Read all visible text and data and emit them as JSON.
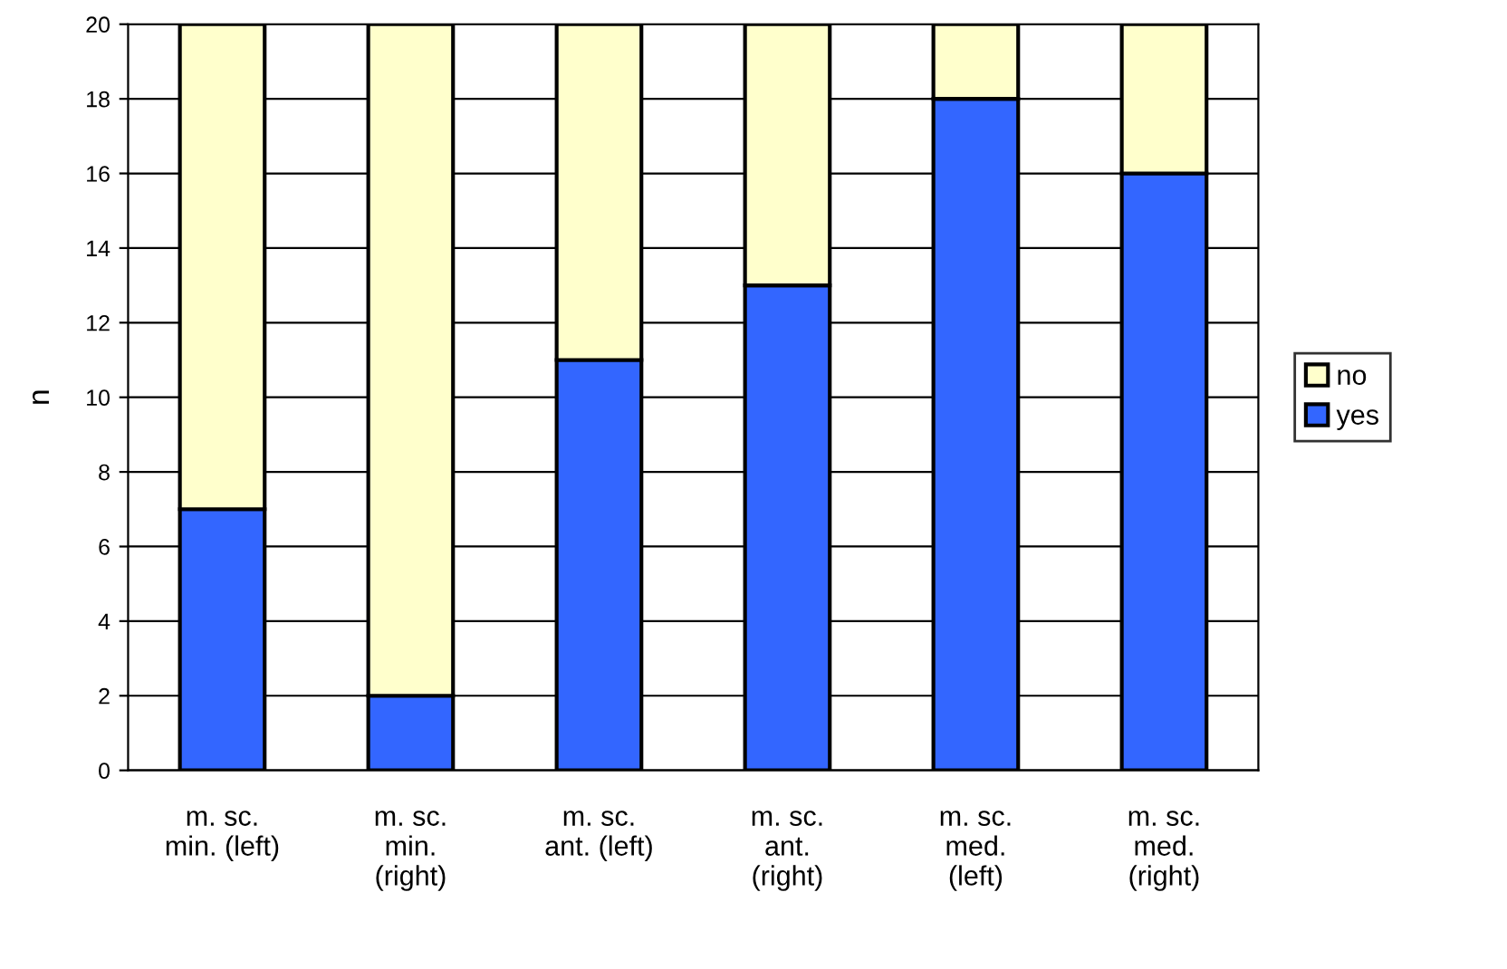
{
  "chart_data": {
    "type": "bar",
    "stacked": true,
    "ylabel": "n",
    "categories": [
      "m. sc.\nmin. (left)",
      "m. sc.\nmin.\n(right)",
      "m. sc.\nant. (left)",
      "m. sc.\nant.\n(right)",
      "m. sc.\nmed.\n(left)",
      "m. sc.\nmed.\n(right)"
    ],
    "series": [
      {
        "name": "yes",
        "color": "#3366ff",
        "values": [
          7,
          2,
          11,
          13,
          18,
          16
        ]
      },
      {
        "name": "no",
        "color": "#ffffcc",
        "values": [
          13,
          18,
          9,
          7,
          2,
          4
        ]
      }
    ],
    "ylim": [
      0,
      20
    ],
    "yticks": [
      0,
      2,
      4,
      6,
      8,
      10,
      12,
      14,
      16,
      18,
      20
    ],
    "grid": "y",
    "legend": "right"
  }
}
